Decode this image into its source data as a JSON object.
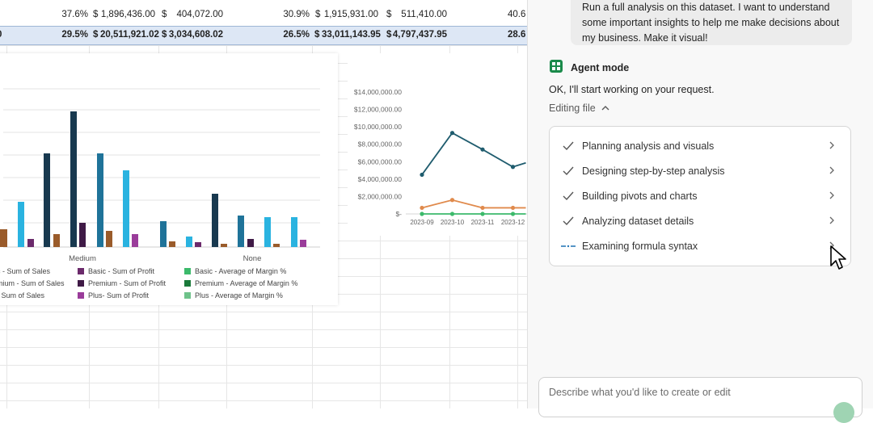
{
  "sheet": {
    "rows": [
      {
        "cells": [
          "37.6%",
          "$",
          "1,896,436.00",
          "$",
          "404,072.00",
          "30.9%",
          "$",
          "1,915,931.00",
          "$",
          "511,410.00",
          "40.6"
        ]
      },
      {
        "cells": [
          "29.5%",
          "$",
          "20,511,921.02",
          "$",
          "3,034,608.02",
          "26.5%",
          "$",
          "33,011,143.95",
          "$",
          "4,797,437.95",
          "28.6"
        ],
        "total": true
      }
    ]
  },
  "bar_chart": {
    "chart_data": {
      "type": "bar",
      "categories": [
        "",
        "Medium",
        "None"
      ],
      "legend": [
        "c - Sum of Sales",
        "mium - Sum of Sales",
        "- Sum of Sales",
        "Basic - Sum of Profit",
        "Premium - Sum of Profit",
        "Plus- Sum of Profit",
        "Basic - Average of Margin %",
        "Premium - Average of Margin %",
        "Plus - Average of Margin %"
      ],
      "colors": {
        "basic_sales": "#1f7399",
        "premium_sales": "#18394f",
        "plus_sales": "#2ab3e0",
        "basic_profit": "#6b2a6b",
        "premium_profit": "#3f1a46",
        "plus_profit": "#9a3c9a",
        "margin_basic": "#3cba6b",
        "margin_premium": "#1a7a3a",
        "margin_plus": "#6ec28a",
        "other": "#9a5b2a"
      }
    }
  },
  "line_chart": {
    "chart_data": {
      "type": "line",
      "x": [
        "2023-09",
        "2023-10",
        "2023-11",
        "2023-12"
      ],
      "y_ticks": [
        "$14,000,000.00",
        "$12,000,000.00",
        "$10,000,000.00",
        "$8,000,000.00",
        "$6,000,000.00",
        "$4,000,000.00",
        "$2,000,000.00",
        "$-"
      ],
      "ylim": [
        0,
        14000000
      ],
      "series": [
        {
          "values": [
            4500000,
            9300000,
            7400000,
            5400000
          ],
          "color": "#1f5c6e"
        },
        {
          "values": [
            700000,
            1600000,
            700000,
            700000
          ],
          "color": "#e08a4c"
        },
        {
          "values": [
            0,
            0,
            0,
            0
          ],
          "color": "#3cba6b"
        }
      ]
    }
  },
  "panel": {
    "user_message": [
      "Run a full analysis on this dataset. I want to understand",
      "some important insights to help me make decisions about",
      "my business. Make it visual!"
    ],
    "agent_title": "Agent mode",
    "agent_message": "OK, I'll start working on your request.",
    "editing_label": "Editing file",
    "steps": [
      {
        "label": "Planning analysis and visuals",
        "status": "done"
      },
      {
        "label": "Designing step-by-step analysis",
        "status": "done"
      },
      {
        "label": "Building pivots and charts",
        "status": "done"
      },
      {
        "label": "Analyzing dataset details",
        "status": "done"
      },
      {
        "label": "Examining formula syntax",
        "status": "in-progress"
      }
    ],
    "input_placeholder": "Describe what you'd like to create or edit",
    "accent_color": "#1a8a4a"
  }
}
